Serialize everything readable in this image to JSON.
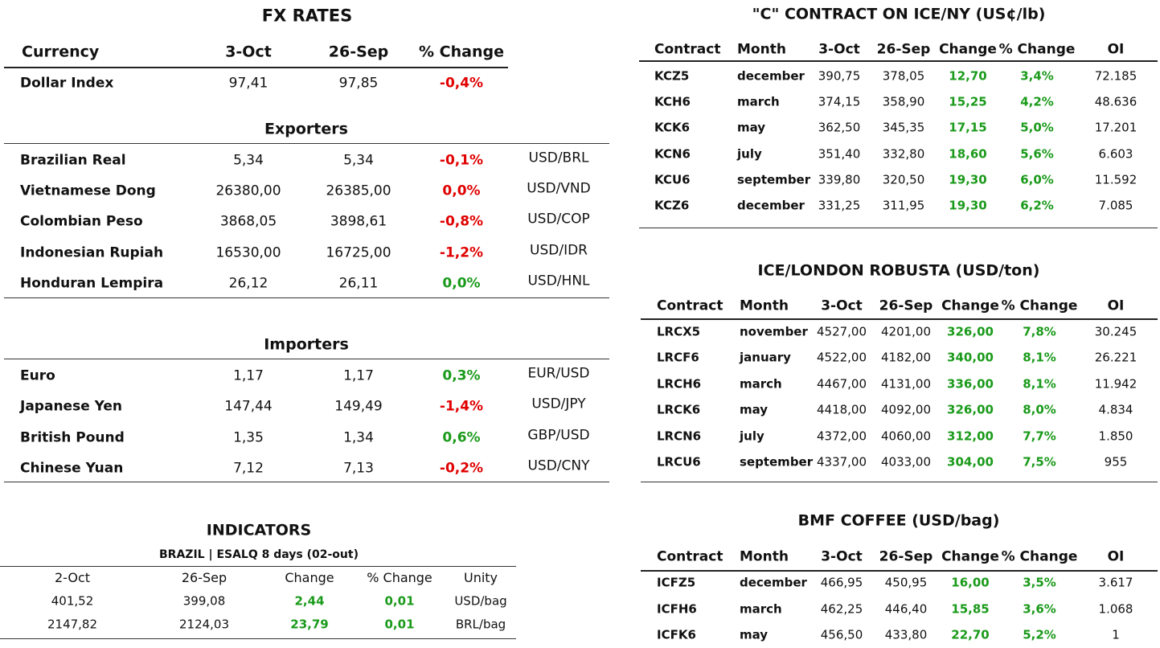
{
  "fx": {
    "title": "FX RATES",
    "header": [
      "Currency",
      "3-Oct",
      "26-Sep",
      "% Change"
    ],
    "dollar_index": {
      "row": [
        "Dollar Index",
        "97,41",
        "97,85",
        "-0,4%"
      ],
      "change_color": "#e00000"
    },
    "exporters": {
      "title": "Exporters",
      "rows": [
        [
          "Brazilian Real",
          "5,34",
          "5,34",
          "-0,1%",
          "USD/BRL"
        ],
        [
          "Vietnamese Dong",
          "26380,00",
          "26385,00",
          "0,0%",
          "USD/VND"
        ],
        [
          "Colombian Peso",
          "3868,05",
          "3898,61",
          "-0,8%",
          "USD/COP"
        ],
        [
          "Indonesian Rupiah",
          "16530,00",
          "16725,00",
          "-1,2%",
          "USD/IDR"
        ],
        [
          "Honduran Lempira",
          "26,12",
          "26,11",
          "0,0%",
          "USD/HNL"
        ]
      ],
      "change_colors": [
        "#e00000",
        "#e00000",
        "#e00000",
        "#e00000",
        "#1a9a1a"
      ]
    },
    "importers": {
      "title": "Importers",
      "rows": [
        [
          "Euro",
          "1,17",
          "1,17",
          "0,3%",
          "EUR/USD"
        ],
        [
          "Japanese Yen",
          "147,44",
          "149,49",
          "-1,4%",
          "USD/JPY"
        ],
        [
          "British Pound",
          "1,35",
          "1,34",
          "0,6%",
          "GBP/USD"
        ],
        [
          "Chinese Yuan",
          "7,12",
          "7,13",
          "-0,2%",
          "USD/CNY"
        ]
      ],
      "change_colors": [
        "#1a9a1a",
        "#e00000",
        "#1a9a1a",
        "#e00000"
      ]
    }
  },
  "indicators": {
    "title": "INDICATORS",
    "subtitle": "BRAZIL | ESALQ 8 days (02-out)",
    "header": [
      "2-Oct",
      "26-Sep",
      "Change",
      "% Change",
      "Unity"
    ],
    "rows": [
      [
        "401,52",
        "399,08",
        "2,44",
        "0,01",
        "USD/bag"
      ],
      [
        "2147,82",
        "2124,03",
        "23,79",
        "0,01",
        "BRL/bag"
      ]
    ],
    "change_color": "#1a9a1a"
  },
  "contracts": [
    {
      "title": "\"C\" CONTRACT ON ICE/NY (US¢/lb)",
      "header": [
        "Contract",
        "Month",
        "3-Oct",
        "26-Sep",
        "Change",
        "% Change",
        "OI"
      ],
      "rows": [
        [
          "KCZ5",
          "december",
          "390,75",
          "378,05",
          "12,70",
          "3,4%",
          "72.185"
        ],
        [
          "KCH6",
          "march",
          "374,15",
          "358,90",
          "15,25",
          "4,2%",
          "48.636"
        ],
        [
          "KCK6",
          "may",
          "362,50",
          "345,35",
          "17,15",
          "5,0%",
          "17.201"
        ],
        [
          "KCN6",
          "july",
          "351,40",
          "332,80",
          "18,60",
          "5,6%",
          "6.603"
        ],
        [
          "KCU6",
          "september",
          "339,80",
          "320,50",
          "19,30",
          "6,0%",
          "11.592"
        ],
        [
          "KCZ6",
          "december",
          "331,25",
          "311,95",
          "19,30",
          "6,2%",
          "7.085"
        ]
      ],
      "change_color": "#1a9a1a"
    },
    {
      "title": "ICE/LONDON ROBUSTA (USD/ton)",
      "header": [
        "Contract",
        "Month",
        "3-Oct",
        "26-Sep",
        "Change",
        "% Change",
        "OI"
      ],
      "rows": [
        [
          "LRCX5",
          "november",
          "4527,00",
          "4201,00",
          "326,00",
          "7,8%",
          "30.245"
        ],
        [
          "LRCF6",
          "january",
          "4522,00",
          "4182,00",
          "340,00",
          "8,1%",
          "26.221"
        ],
        [
          "LRCH6",
          "march",
          "4467,00",
          "4131,00",
          "336,00",
          "8,1%",
          "11.942"
        ],
        [
          "LRCK6",
          "may",
          "4418,00",
          "4092,00",
          "326,00",
          "8,0%",
          "4.834"
        ],
        [
          "LRCN6",
          "july",
          "4372,00",
          "4060,00",
          "312,00",
          "7,7%",
          "1.850"
        ],
        [
          "LRCU6",
          "september",
          "4337,00",
          "4033,00",
          "304,00",
          "7,5%",
          "955"
        ]
      ],
      "change_color": "#1a9a1a"
    },
    {
      "title": "BMF COFFEE (USD/bag)",
      "header": [
        "Contract",
        "Month",
        "3-Oct",
        "26-Sep",
        "Change",
        "% Change",
        "OI"
      ],
      "rows": [
        [
          "ICFZ5",
          "december",
          "466,95",
          "450,95",
          "16,00",
          "3,5%",
          "3.617"
        ],
        [
          "ICFH6",
          "march",
          "462,25",
          "446,40",
          "15,85",
          "3,6%",
          "1.068"
        ],
        [
          "ICFK6",
          "may",
          "456,50",
          "433,80",
          "22,70",
          "5,2%",
          "1"
        ]
      ],
      "change_color": "#1a9a1a"
    }
  ]
}
